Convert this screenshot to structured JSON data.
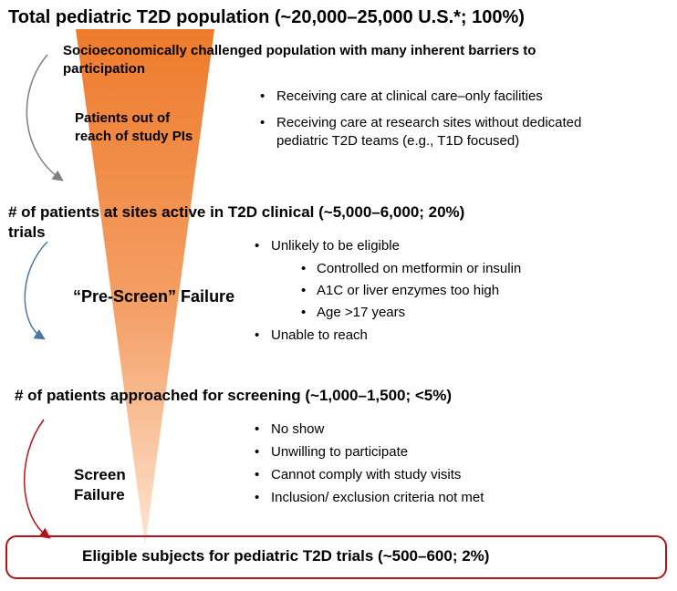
{
  "levels": [
    {
      "title": "Total pediatric T2D population",
      "stat": "(~20,000–25,000  U.S.*; 100%)"
    },
    {
      "title": "# of patients at sites active in T2D clinical trials",
      "title_line1": "# of patients at sites active in T2D clinical",
      "title_line2": "trials",
      "stat": "(~5,000–6,000; 20%)"
    },
    {
      "title": "# of patients approached for screening",
      "stat": "(~1,000–1,500; <5%)"
    },
    {
      "title": "Eligible subjects for pediatric T2D trials",
      "stat": "(~500–600; 2%)"
    }
  ],
  "note_top": {
    "line1": "Socioeconomically  challenged population with many inherent  barriers to",
    "line2": "participation"
  },
  "stage1": {
    "label_line1": "Patients out of",
    "label_line2": "reach of study PIs",
    "bullets": [
      "Receiving care at clinical care–only facilities",
      "Receiving care at research sites without dedicated",
      "pediatric T2D teams (e.g., T1D focused)"
    ]
  },
  "stage2": {
    "label": "“Pre-Screen” Failure",
    "bullets": [
      "Unlikely to be eligible",
      "Unable to reach"
    ],
    "sub_bullets": [
      "Controlled on metformin or insulin",
      "A1C or liver enzymes too high",
      "Age >17 years"
    ]
  },
  "stage3": {
    "label_line1": "Screen",
    "label_line2": "Failure",
    "bullets": [
      "No show",
      "Unwilling to participate",
      "Cannot comply with study visits",
      "Inclusion/ exclusion criteria not met"
    ]
  },
  "colors": {
    "funnel_top": "#ee7b2c",
    "funnel_bottom": "#fde5d2",
    "arrow_gray": "#7f7f7f",
    "arrow_blue": "#4a78a8",
    "arrow_red": "#b3141c",
    "frame_border": "#b3141c"
  }
}
